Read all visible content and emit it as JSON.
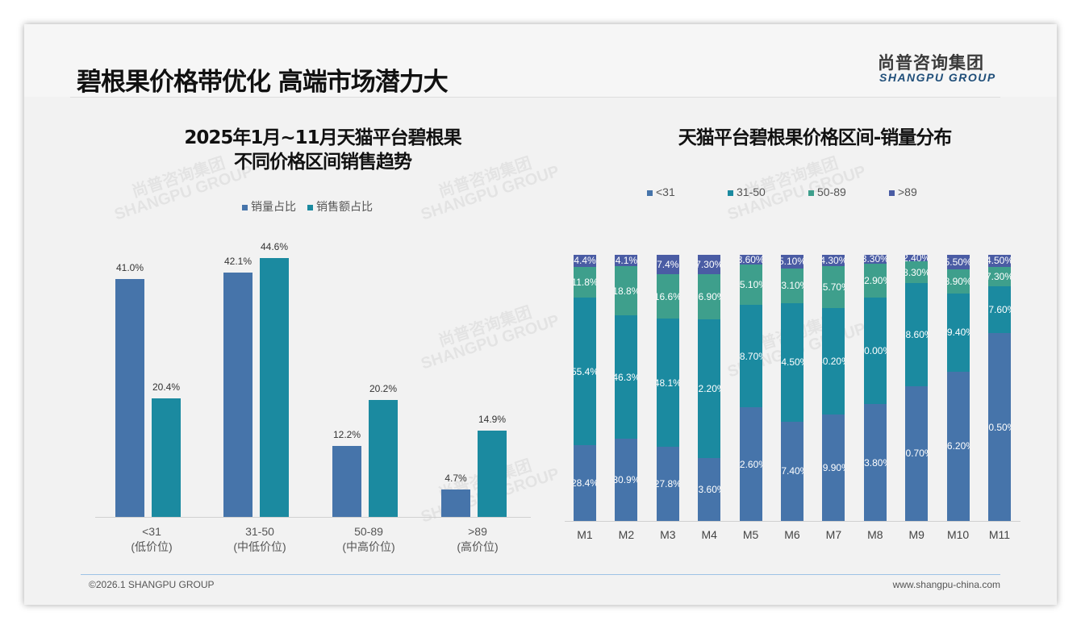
{
  "header": {
    "title": "碧根果价格带优化 高端市场潜力大",
    "logo_cn": "尚普咨询集团",
    "logo_en": "SHANGPU GROUP"
  },
  "footer": {
    "copyright": "©2026.1 SHANGPU GROUP",
    "website": "www.shangpu-china.com"
  },
  "colors": {
    "lt31": "#4674aa",
    "r31_50": "#1b8aa0",
    "r50_89": "#3e9f8c",
    "gt89": "#4a5ca4",
    "volume": "#4674aa",
    "sales": "#1b8aa0"
  },
  "chart_data": [
    {
      "type": "bar",
      "title_line1": "2025年1月~11月天猫平台碧根果",
      "title_line2": "不同价格区间销售趋势",
      "categories": [
        "<31",
        "31-50",
        "50-89",
        ">89"
      ],
      "category_sub": [
        "(低价位)",
        "(中低价位)",
        "(中高价位)",
        "(高价位)"
      ],
      "series": [
        {
          "name": "销量占比",
          "values": [
            41.0,
            42.1,
            12.2,
            4.7
          ],
          "labels": [
            "41.0%",
            "42.1%",
            "12.2%",
            "4.7%"
          ]
        },
        {
          "name": "销售额占比",
          "values": [
            20.4,
            44.6,
            20.2,
            14.9
          ],
          "labels": [
            "20.4%",
            "44.6%",
            "20.2%",
            "14.9%"
          ]
        }
      ],
      "ylim": [
        0,
        50
      ],
      "legend": "top"
    },
    {
      "type": "bar",
      "stacked": true,
      "title": "天猫平台碧根果价格区间-销量分布",
      "categories": [
        "M1",
        "M2",
        "M3",
        "M4",
        "M5",
        "M6",
        "M7",
        "M8",
        "M9",
        "M10",
        "M11"
      ],
      "series": [
        {
          "name": "<31",
          "values": [
            28.4,
            30.9,
            27.8,
            23.6,
            42.6,
            37.4,
            39.9,
            43.8,
            50.7,
            56.2,
            70.5
          ],
          "labels": [
            "28.4%",
            "30.9%",
            "27.8%",
            "23.60%",
            "42.60%",
            "37.40%",
            "39.90%",
            "43.80%",
            "50.70%",
            "56.20%",
            "70.50%"
          ]
        },
        {
          "name": "31-50",
          "values": [
            55.4,
            46.3,
            48.1,
            52.2,
            38.7,
            44.5,
            40.2,
            40.0,
            38.6,
            29.4,
            17.6
          ],
          "labels": [
            "55.4%",
            "46.3%",
            "48.1%",
            "52.20%",
            "38.70%",
            "44.50%",
            "40.20%",
            "40.00%",
            "38.60%",
            "29.40%",
            "17.60%"
          ]
        },
        {
          "name": "50-89",
          "values": [
            11.8,
            18.8,
            16.6,
            16.9,
            15.1,
            13.1,
            15.7,
            12.9,
            8.3,
            8.9,
            7.3
          ],
          "labels": [
            "11.8%",
            "18.8%",
            "16.6%",
            "16.90%",
            "15.10%",
            "13.10%",
            "15.70%",
            "12.90%",
            "8.30%",
            "8.90%",
            "7.30%"
          ]
        },
        {
          "name": ">89",
          "values": [
            4.4,
            4.1,
            7.4,
            7.3,
            3.6,
            5.1,
            4.3,
            3.3,
            2.4,
            5.5,
            4.5
          ],
          "labels": [
            "4.4%",
            "4.1%",
            "7.4%",
            "7.30%",
            "3.60%",
            "5.10%",
            "4.30%",
            "3.30%",
            "2.40%",
            "5.50%",
            "4.50%"
          ]
        }
      ],
      "ylim": [
        0,
        100
      ],
      "legend": "top"
    }
  ]
}
